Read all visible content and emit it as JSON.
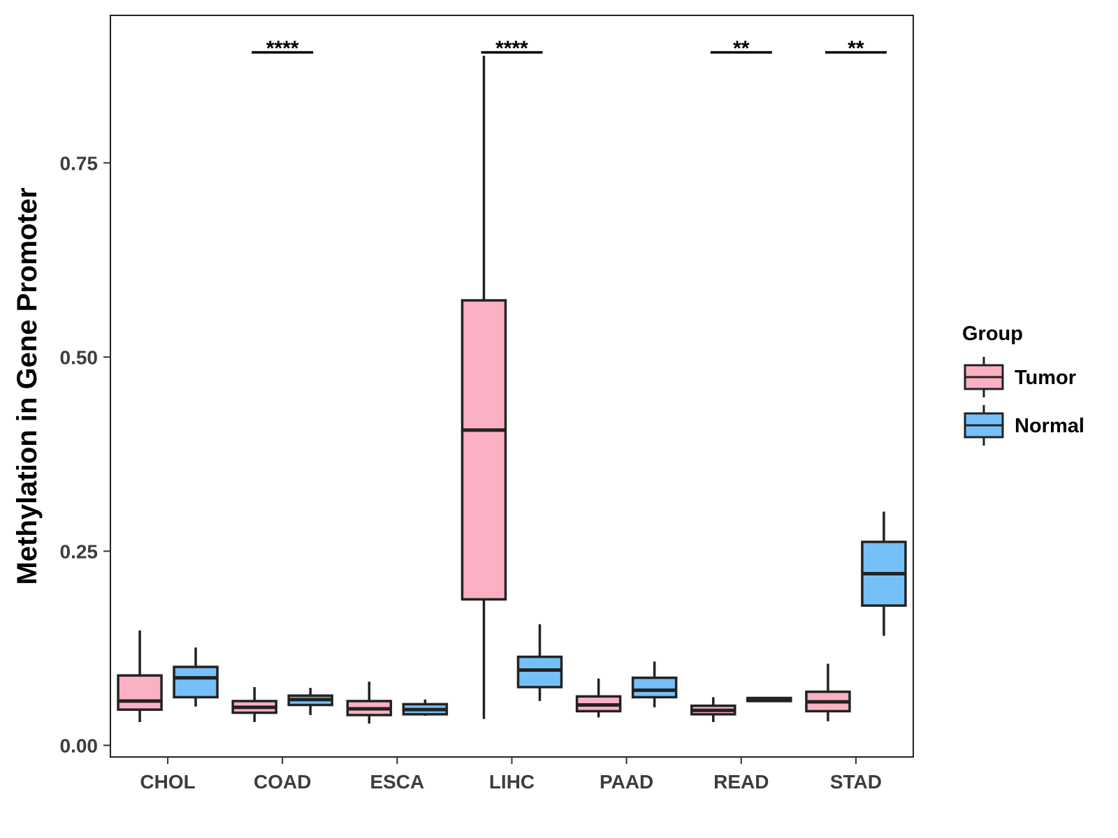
{
  "chart_data": {
    "type": "boxplot",
    "ylabel": "Methylation in Gene Promoter",
    "xlabel": "",
    "ylim": [
      -0.015,
      0.94
    ],
    "yticks": [
      0.0,
      0.25,
      0.5,
      0.75
    ],
    "ytick_labels": [
      "0.00",
      "0.25",
      "0.50",
      "0.75"
    ],
    "categories": [
      "CHOL",
      "COAD",
      "ESCA",
      "LIHC",
      "PAAD",
      "READ",
      "STAD"
    ],
    "legend": {
      "title": "Group",
      "position": "right",
      "entries": [
        {
          "name": "Tumor",
          "color": "#FBB0C3"
        },
        {
          "name": "Normal",
          "color": "#75C0F8"
        }
      ]
    },
    "series": [
      {
        "name": "Tumor",
        "color": "#FBB0C3",
        "boxes": [
          {
            "min": 0.03,
            "q1": 0.046,
            "median": 0.057,
            "q3": 0.09,
            "max": 0.148
          },
          {
            "min": 0.03,
            "q1": 0.042,
            "median": 0.049,
            "q3": 0.057,
            "max": 0.075
          },
          {
            "min": 0.028,
            "q1": 0.039,
            "median": 0.047,
            "q3": 0.057,
            "max": 0.082
          },
          {
            "min": 0.034,
            "q1": 0.188,
            "median": 0.406,
            "q3": 0.573,
            "max": 0.888
          },
          {
            "min": 0.036,
            "q1": 0.044,
            "median": 0.052,
            "q3": 0.063,
            "max": 0.086
          },
          {
            "min": 0.03,
            "q1": 0.04,
            "median": 0.045,
            "q3": 0.051,
            "max": 0.062
          },
          {
            "min": 0.031,
            "q1": 0.044,
            "median": 0.056,
            "q3": 0.069,
            "max": 0.105
          }
        ]
      },
      {
        "name": "Normal",
        "color": "#75C0F8",
        "boxes": [
          {
            "min": 0.05,
            "q1": 0.062,
            "median": 0.087,
            "q3": 0.101,
            "max": 0.126
          },
          {
            "min": 0.039,
            "q1": 0.052,
            "median": 0.059,
            "q3": 0.064,
            "max": 0.074
          },
          {
            "min": 0.038,
            "q1": 0.04,
            "median": 0.046,
            "q3": 0.053,
            "max": 0.059
          },
          {
            "min": 0.057,
            "q1": 0.075,
            "median": 0.097,
            "q3": 0.114,
            "max": 0.156
          },
          {
            "min": 0.049,
            "q1": 0.062,
            "median": 0.071,
            "q3": 0.087,
            "max": 0.108
          },
          {
            "min": 0.056,
            "q1": 0.057,
            "median": 0.059,
            "q3": 0.061,
            "max": 0.062
          },
          {
            "min": 0.141,
            "q1": 0.18,
            "median": 0.221,
            "q3": 0.262,
            "max": 0.301
          }
        ]
      }
    ],
    "annotations": [
      {
        "category": "COAD",
        "label": "****"
      },
      {
        "category": "LIHC",
        "label": "****"
      },
      {
        "category": "READ",
        "label": "**"
      },
      {
        "category": "STAD",
        "label": "**"
      }
    ]
  }
}
